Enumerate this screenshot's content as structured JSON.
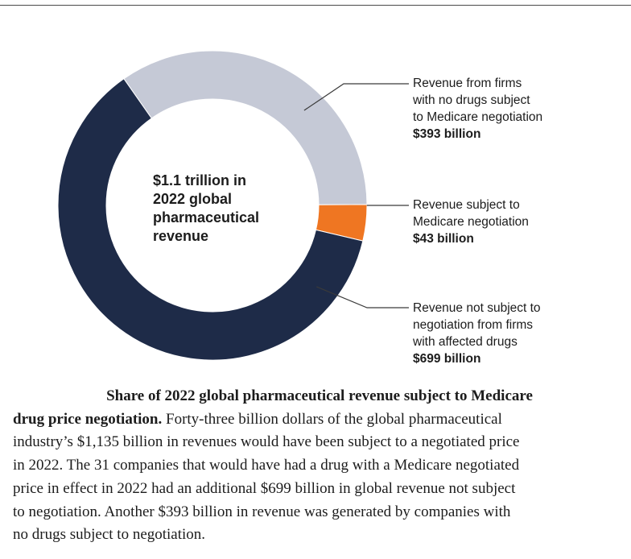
{
  "chart_data": {
    "type": "pie",
    "title": "",
    "center_label": [
      "$1.1 trillion in",
      "2022 global",
      "pharmaceutical",
      "revenue"
    ],
    "slices": [
      {
        "label": "Revenue from firms with no drugs subject to Medicare negotiation",
        "value": 393,
        "value_label": "$393 billion",
        "color": "#c5c9d6"
      },
      {
        "label": "Revenue subject to Medicare negotiation",
        "value": 43,
        "value_label": "$43 billion",
        "color": "#ef7622"
      },
      {
        "label": "Revenue not subject to negotiation from firms with affected drugs",
        "value": 699,
        "value_label": "$699 billion",
        "color": "#1e2b48"
      }
    ],
    "unit": "billion dollars"
  },
  "callouts": [
    {
      "lines": [
        "Revenue from firms",
        "with no drugs subject",
        "to Medicare negotiation"
      ],
      "value": "$393 billion"
    },
    {
      "lines": [
        "Revenue subject to",
        "Medicare negotiation"
      ],
      "value": "$43 billion"
    },
    {
      "lines": [
        "Revenue not subject to",
        "negotiation from firms",
        "with affected drugs"
      ],
      "value": "$699 billion"
    }
  ],
  "caption": {
    "title_line1": "Share of 2022 global pharmaceutical revenue subject to Medicare",
    "title_line2": "drug price negotiation.",
    "body_first": " Forty-three billion dollars of the global pharmaceutical",
    "body_lines": [
      "industry’s $1,135 billion in revenues would have been subject to a negotiated price",
      "in 2022. The 31 companies that would have had a drug with a Medicare negotiated",
      "price in effect in 2022 had an additional $699 billion in global revenue not subject",
      "to negotiation. Another $393 billion in revenue was generated by companies with",
      "no drugs subject to negotiation."
    ]
  },
  "colors": {
    "navy": "#1e2b48",
    "gray": "#c5c9d6",
    "orange": "#ef7622",
    "leader": "#3a3a3a"
  }
}
